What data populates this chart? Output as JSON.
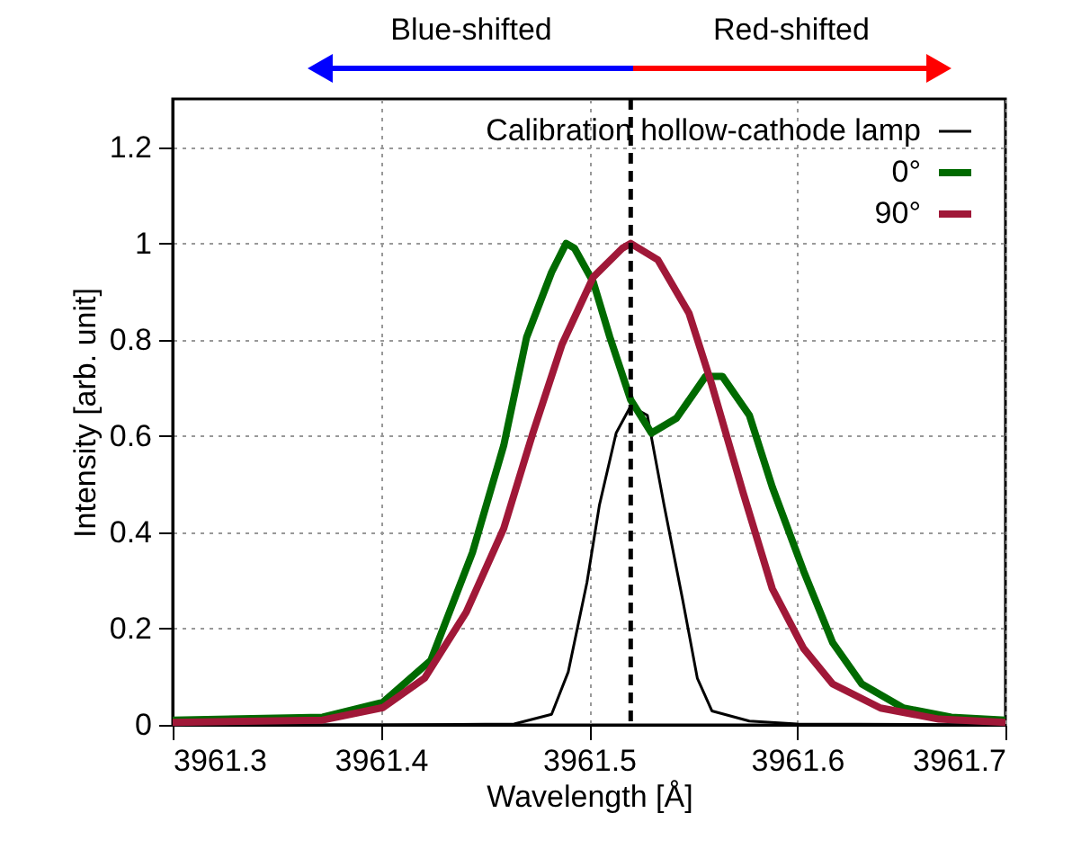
{
  "chart_data": {
    "type": "line",
    "xlabel": "Wavelength [Å]",
    "ylabel": "Intensity [arb. unit]",
    "xlim": [
      3961.3,
      3961.7
    ],
    "xticks": [
      3961.3,
      3961.4,
      3961.5,
      3961.6,
      3961.7
    ],
    "ylim": [
      0,
      1.3
    ],
    "yticks": [
      0,
      0.2,
      0.4,
      0.6,
      0.8,
      1,
      1.2
    ],
    "grid": true,
    "legend": "top right",
    "marker": "none",
    "line_style": "solid",
    "annotations": [
      "Blue-shifted",
      "Red-shifted"
    ],
    "ref_lines": [
      {
        "axis": "x",
        "value": 3961.52,
        "label": null,
        "color": "#000000",
        "line_style": "dashed"
      }
    ],
    "series": [
      {
        "name": "Calibration hollow-cathode lamp",
        "color": "#000000",
        "x": [
          3961.3,
          3961.4,
          3961.464,
          3961.482,
          3961.49,
          3961.499,
          3961.505,
          3961.513,
          3961.52,
          3961.528,
          3961.536,
          3961.545,
          3961.552,
          3961.559,
          3961.577,
          3961.6,
          3961.7
        ],
        "values": [
          0,
          0,
          0.002,
          0.022,
          0.11,
          0.296,
          0.457,
          0.606,
          0.662,
          0.643,
          0.457,
          0.259,
          0.097,
          0.029,
          0.008,
          0.002,
          0
        ]
      },
      {
        "name": "0°",
        "color": "#006a00",
        "x": [
          3961.3,
          3961.372,
          3961.401,
          3961.424,
          3961.444,
          3961.459,
          3961.47,
          3961.482,
          3961.489,
          3961.493,
          3961.502,
          3961.51,
          3961.52,
          3961.53,
          3961.542,
          3961.556,
          3961.564,
          3961.577,
          3961.588,
          3961.603,
          3961.617,
          3961.631,
          3961.651,
          3961.674,
          3961.7
        ],
        "values": [
          0.01,
          0.016,
          0.047,
          0.134,
          0.358,
          0.58,
          0.805,
          0.94,
          1.0,
          0.99,
          0.92,
          0.805,
          0.675,
          0.606,
          0.637,
          0.724,
          0.724,
          0.643,
          0.494,
          0.32,
          0.171,
          0.085,
          0.035,
          0.016,
          0.01
        ]
      },
      {
        "name": "90°",
        "color": "#a01838",
        "x": [
          3961.3,
          3961.372,
          3961.401,
          3961.421,
          3961.441,
          3961.459,
          3961.473,
          3961.487,
          3961.502,
          3961.516,
          3961.52,
          3961.533,
          3961.548,
          3961.559,
          3961.574,
          3961.588,
          3961.603,
          3961.617,
          3961.64,
          3961.668,
          3961.7
        ],
        "values": [
          0.005,
          0.01,
          0.036,
          0.097,
          0.234,
          0.408,
          0.606,
          0.79,
          0.93,
          0.99,
          1.0,
          0.966,
          0.855,
          0.706,
          0.482,
          0.283,
          0.159,
          0.085,
          0.035,
          0.012,
          0.005
        ]
      }
    ]
  }
}
